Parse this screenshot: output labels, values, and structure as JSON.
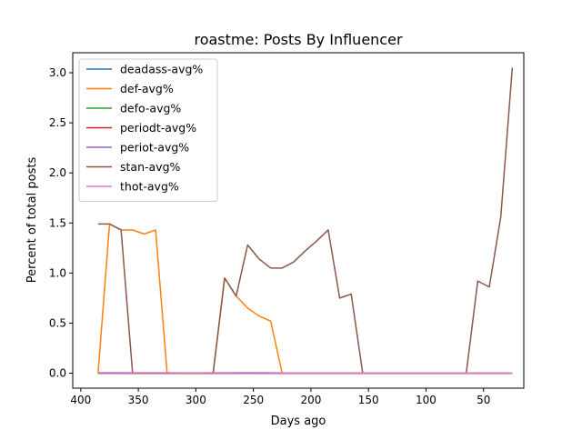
{
  "chart_data": {
    "type": "line",
    "title": "roastme: Posts By Influencer",
    "xlabel": "Days ago",
    "ylabel": "Percent of total posts",
    "x_inverted": true,
    "xlim": [
      407,
      15
    ],
    "ylim": [
      -0.15,
      3.2
    ],
    "xticks": [
      400,
      350,
      300,
      250,
      200,
      150,
      100,
      50
    ],
    "yticks": [
      0.0,
      0.5,
      1.0,
      1.5,
      2.0,
      2.5,
      3.0
    ],
    "xtick_labels": [
      "400",
      "350",
      "300",
      "250",
      "200",
      "150",
      "100",
      "50"
    ],
    "ytick_labels": [
      "0.0",
      "0.5",
      "1.0",
      "1.5",
      "2.0",
      "2.5",
      "3.0"
    ],
    "grid": false,
    "legend_position": "top-left",
    "series": [
      {
        "name": "deadass-avg%",
        "color": "#1f77b4",
        "x": [
          385,
          375,
          365,
          355,
          345,
          335,
          325,
          315,
          305,
          295,
          285,
          275,
          265,
          255,
          245,
          235,
          225,
          215,
          205,
          195,
          185,
          175,
          165,
          155,
          145,
          135,
          125,
          115,
          105,
          95,
          85,
          75,
          65,
          55,
          45,
          35,
          25
        ],
        "y": [
          0,
          0,
          0,
          0,
          0,
          0,
          0,
          0,
          0,
          0,
          0,
          0,
          0,
          0,
          0,
          0,
          0,
          0,
          0,
          0,
          0,
          0,
          0,
          0,
          0,
          0,
          0,
          0,
          0,
          0,
          0,
          0,
          0,
          0,
          0,
          0,
          0
        ]
      },
      {
        "name": "def-avg%",
        "color": "#ff7f0e",
        "x": [
          385,
          375,
          365,
          355,
          345,
          335,
          325,
          315,
          305,
          295,
          285,
          275,
          265,
          255,
          245,
          235,
          225,
          215,
          205,
          195,
          185,
          175,
          165,
          155,
          145,
          135,
          125,
          115,
          105,
          95,
          85,
          75,
          65,
          55,
          45,
          35,
          25
        ],
        "y": [
          0,
          1.49,
          1.43,
          1.43,
          1.39,
          1.43,
          0,
          0,
          0,
          0,
          0,
          0.95,
          0.77,
          0.65,
          0.57,
          0.52,
          0,
          0,
          0,
          0,
          0,
          0,
          0,
          0,
          0,
          0,
          0,
          0,
          0,
          0,
          0,
          0,
          0,
          0,
          0,
          0,
          0
        ]
      },
      {
        "name": "defo-avg%",
        "color": "#2ca02c",
        "x": [
          385,
          375,
          365,
          355,
          345,
          335,
          325,
          315,
          305,
          295,
          285,
          275,
          265,
          255,
          245,
          235,
          225,
          215,
          205,
          195,
          185,
          175,
          165,
          155,
          145,
          135,
          125,
          115,
          105,
          95,
          85,
          75,
          65,
          55,
          45,
          35,
          25
        ],
        "y": [
          0,
          0,
          0,
          0,
          0,
          0,
          0,
          0,
          0,
          0,
          0,
          0,
          0,
          0,
          0,
          0,
          0,
          0,
          0,
          0,
          0,
          0,
          0,
          0,
          0,
          0,
          0,
          0,
          0,
          0,
          0,
          0,
          0,
          0,
          0,
          0,
          0
        ]
      },
      {
        "name": "periodt-avg%",
        "color": "#d62728",
        "x": [
          385,
          375,
          365,
          355,
          345,
          335,
          325,
          315,
          305,
          295,
          285,
          275,
          265,
          255,
          245,
          235,
          225,
          215,
          205,
          195,
          185,
          175,
          165,
          155,
          145,
          135,
          125,
          115,
          105,
          95,
          85,
          75,
          65,
          55,
          45,
          35,
          25
        ],
        "y": [
          0,
          0,
          0,
          0,
          0,
          0,
          0,
          0,
          0,
          0,
          0,
          0,
          0,
          0,
          0,
          0,
          0,
          0,
          0,
          0,
          0,
          0,
          0,
          0,
          0,
          0,
          0,
          0,
          0,
          0,
          0,
          0,
          0,
          0,
          0,
          0,
          0
        ]
      },
      {
        "name": "periot-avg%",
        "color": "#9467bd",
        "x": [
          385,
          375,
          365,
          355,
          345,
          335,
          325,
          315,
          305,
          295,
          285,
          275,
          265,
          255,
          245,
          235,
          225,
          215,
          205,
          195,
          185,
          175,
          165,
          155,
          145,
          135,
          125,
          115,
          105,
          95,
          85,
          75,
          65,
          55,
          45,
          35,
          25
        ],
        "y": [
          0,
          0,
          0,
          0,
          0,
          0,
          0,
          0,
          0,
          0,
          0,
          0,
          0,
          0,
          0,
          0,
          0,
          0,
          0,
          0,
          0,
          0,
          0,
          0,
          0,
          0,
          0,
          0,
          0,
          0,
          0,
          0,
          0,
          0,
          0,
          0,
          0
        ]
      },
      {
        "name": "stan-avg%",
        "color": "#8c564b",
        "x": [
          385,
          375,
          365,
          355,
          345,
          335,
          325,
          315,
          305,
          295,
          285,
          275,
          265,
          255,
          245,
          235,
          225,
          215,
          205,
          195,
          185,
          175,
          165,
          155,
          145,
          135,
          125,
          115,
          105,
          95,
          85,
          75,
          65,
          55,
          45,
          35,
          25
        ],
        "y": [
          1.49,
          1.49,
          1.43,
          0,
          0,
          0,
          0,
          0,
          0,
          0,
          0,
          0.95,
          0.77,
          1.28,
          1.14,
          1.05,
          1.05,
          1.11,
          1.22,
          1.32,
          1.43,
          0.75,
          0.79,
          0,
          0,
          0,
          0,
          0,
          0,
          0,
          0,
          0,
          0,
          0.92,
          0.86,
          1.56,
          3.05
        ]
      },
      {
        "name": "thot-avg%",
        "color": "#e377c2",
        "x": [
          385,
          375,
          365,
          355,
          345,
          335,
          325,
          315,
          305,
          295,
          285,
          275,
          265,
          255,
          245,
          235,
          225,
          215,
          205,
          195,
          185,
          175,
          165,
          155,
          145,
          135,
          125,
          115,
          105,
          95,
          85,
          75,
          65,
          55,
          45,
          35,
          25
        ],
        "y": [
          0.005,
          0.005,
          0.005,
          0.004,
          0.004,
          0.004,
          0.004,
          0.003,
          0.003,
          0.003,
          0.004,
          0.004,
          0.005,
          0.005,
          0.005,
          0.004,
          0.003,
          0.002,
          0.002,
          0.002,
          0.002,
          0.002,
          0.002,
          0.002,
          0.002,
          0.002,
          0.002,
          0.002,
          0.002,
          0.002,
          0.002,
          0.002,
          0.002,
          0.002,
          0.002,
          0.002,
          0.002
        ]
      }
    ]
  }
}
